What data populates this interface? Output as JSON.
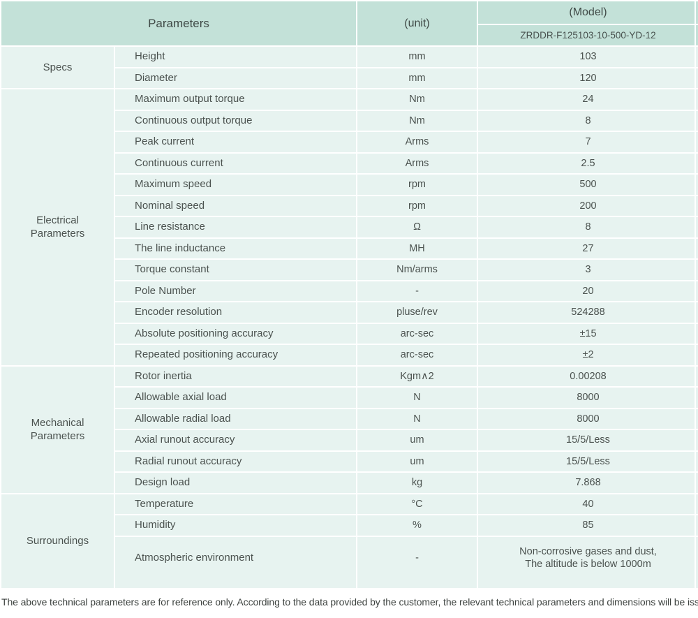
{
  "colors": {
    "header_bg": "#c3e1d8",
    "row_bg": "#e7f3f0"
  },
  "table": {
    "header": {
      "parameters": "Parameters",
      "unit": "(unit)",
      "model": "(Model)",
      "model_code": "ZRDDR-F125103-10-500-YD-12"
    },
    "groups": [
      {
        "label": "Specs",
        "rows": [
          [
            "Height",
            "mm",
            "103"
          ],
          [
            "Diameter",
            "mm",
            "120"
          ]
        ]
      },
      {
        "label": "Electrical\nParameters",
        "rows": [
          [
            "Maximum output torque",
            "Nm",
            "24"
          ],
          [
            "Continuous output torque",
            "Nm",
            "8"
          ],
          [
            "Peak current",
            "Arms",
            "7"
          ],
          [
            "Continuous current",
            "Arms",
            "2.5"
          ],
          [
            "Maximum speed",
            "rpm",
            "500"
          ],
          [
            "Nominal speed",
            "rpm",
            "200"
          ],
          [
            "Line resistance",
            "Ω",
            "8"
          ],
          [
            "The line inductance",
            "MH",
            "27"
          ],
          [
            "Torque constant",
            "Nm/arms",
            "3"
          ],
          [
            "Pole Number",
            "-",
            "20"
          ],
          [
            "Encoder resolution",
            "pluse/rev",
            "524288"
          ],
          [
            "Absolute positioning accuracy",
            "arc-sec",
            "±15"
          ],
          [
            "Repeated positioning accuracy",
            "arc-sec",
            "±2"
          ]
        ]
      },
      {
        "label": "Mechanical\nParameters",
        "rows": [
          [
            "Rotor inertia",
            "Kgm∧2",
            "0.00208"
          ],
          [
            "Allowable axial load",
            "N",
            "8000"
          ],
          [
            "Allowable radial load",
            "N",
            "8000"
          ],
          [
            "Axial runout accuracy",
            "um",
            "15/5/Less"
          ],
          [
            "Radial runout accuracy",
            "um",
            "15/5/Less"
          ],
          [
            "Design load",
            "kg",
            "7.868"
          ]
        ]
      },
      {
        "label": "Surroundings",
        "rows": [
          [
            "Temperature",
            "°C",
            "40"
          ],
          [
            "Humidity",
            "%",
            "85"
          ],
          [
            "Atmospheric environment",
            "-",
            "Non-corrosive gases and dust,\nThe altitude is below 1000m"
          ]
        ]
      }
    ],
    "footer_note": "The above technical parameters are for reference only. According to the data provided by the customer, the relevant technical parameters and dimensions will be issued."
  }
}
